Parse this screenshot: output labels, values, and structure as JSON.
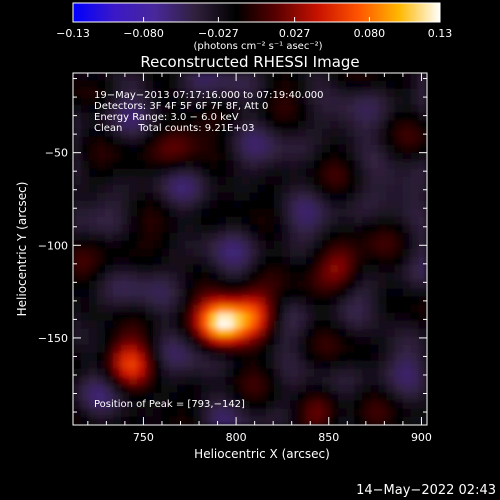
{
  "chart_data": {
    "type": "heatmap",
    "title": "Reconstructed RHESSI Image",
    "xlabel": "Heliocentric X (arcsec)",
    "ylabel": "Heliocentric Y (arcsec)",
    "xlim": [
      712,
      903
    ],
    "ylim": [
      -197,
      -7
    ],
    "x_ticks": [
      750,
      800,
      850,
      900
    ],
    "y_ticks": [
      -50,
      -100,
      -150
    ],
    "x_tick_labels": [
      "750",
      "800",
      "850",
      "900"
    ],
    "y_tick_labels": [
      "−50",
      "−100",
      "−150"
    ],
    "colorbar": {
      "min": -0.13,
      "max": 0.13,
      "ticks": [
        -0.13,
        -0.08,
        -0.027,
        0.027,
        0.08,
        0.13
      ],
      "tick_labels": [
        "−0.13",
        "−0.080",
        "−0.027",
        "0.027",
        "0.080",
        "0.13"
      ],
      "units": "(photons cm⁻² s⁻¹ asec⁻²)",
      "colors": [
        "#0000ff",
        "#3a18c8",
        "#48289a",
        "#30203c",
        "#000000",
        "#5a0000",
        "#c81200",
        "#ff5400",
        "#ffb800",
        "#ffffff"
      ]
    },
    "info_lines": [
      "19−May−2013 07:17:16.000 to 07:19:40.000",
      "Detectors: 3F 4F 5F 6F 7F 8F, Att 0",
      "Energy Range: 3.0 − 6.0 keV",
      "Clean     Total counts: 9.21E+03"
    ],
    "peak_label": "Position of Peak = [793,−142]",
    "peak": [
      793,
      -142
    ],
    "sources": [
      {
        "x": 793,
        "y": -142,
        "value": 0.13
      },
      {
        "x": 810,
        "y": -138,
        "value": 0.09
      },
      {
        "x": 743,
        "y": -165,
        "value": 0.07
      },
      {
        "x": 857,
        "y": -113,
        "value": 0.06
      },
      {
        "x": 768,
        "y": -48,
        "value": 0.04
      },
      {
        "x": 845,
        "y": -190,
        "value": 0.05
      },
      {
        "x": 735,
        "y": -100,
        "value": 0.02
      }
    ]
  },
  "timestamp": "14−May−2022 02:43"
}
